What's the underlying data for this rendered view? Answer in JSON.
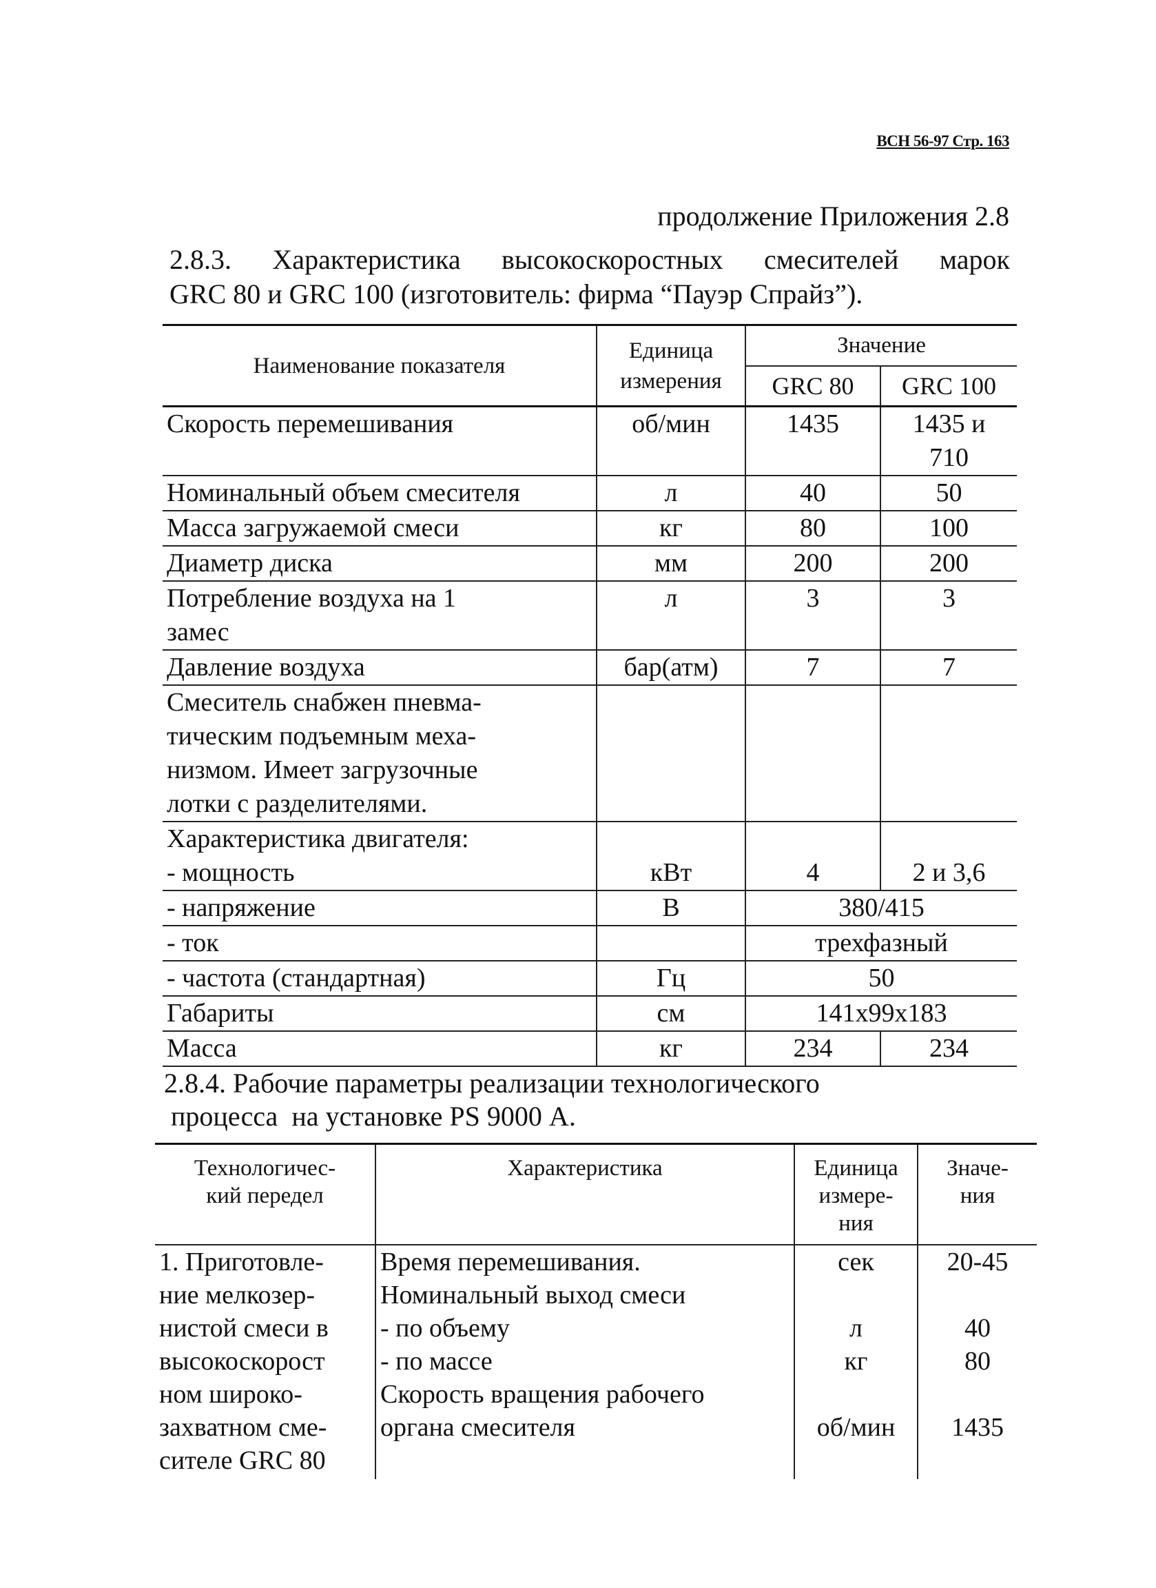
{
  "header": {
    "doc_ref": "ВСН 56-97  Стр. 163"
  },
  "continuation": "продолжение Приложения 2.8",
  "table1": {
    "title_line1": "2.8.3. Характеристика высокоскоростных смесителей марок",
    "title_line2": "GRC 80 и  GRC 100 (изготовитель: фирма “Пауэр Спрайз”).",
    "headers": {
      "name": "Наименование показателя",
      "unit": "Единица измерения",
      "value": "Значение",
      "grc80": "GRC 80",
      "grc100": "GRC 100"
    },
    "rows": [
      {
        "name": "Скорость перемешивания",
        "unit": "об/мин",
        "grc80": "1435",
        "grc100": "1435 и\n710"
      },
      {
        "name": "Номинальный объем смесителя",
        "unit": "л",
        "grc80": "40",
        "grc100": "50"
      },
      {
        "name": "Масса загружаемой смеси",
        "unit": "кг",
        "grc80": "80",
        "grc100": "100"
      },
      {
        "name": "Диаметр диска",
        "unit": "мм",
        "grc80": "200",
        "grc100": "200"
      },
      {
        "name": "Потребление воздуха на 1\nзамес",
        "unit": "л",
        "grc80": "3",
        "grc100": "3"
      },
      {
        "name": "Давление воздуха",
        "unit": "бар(атм)",
        "grc80": "7",
        "grc100": "7"
      },
      {
        "name": "Смеситель снабжен пневма-\nтическим подъемным меха-\nнизмом. Имеет загрузочные\nлотки с разделителями.",
        "unit": "",
        "grc80": "",
        "grc100": ""
      },
      {
        "name": "Характеристика двигателя:\n- мощность",
        "unit": "кВт",
        "grc80": "4",
        "grc100": "2 и 3,6"
      },
      {
        "name": "- напряжение",
        "unit": "В",
        "both": "380/415"
      },
      {
        "name": "- ток",
        "unit": "",
        "both": "трехфазный"
      },
      {
        "name": "- частота (стандартная)",
        "unit": "Гц",
        "both": "50"
      },
      {
        "name": "Габариты",
        "unit": "см",
        "both": "141x99x183"
      },
      {
        "name": "Масса",
        "unit": "кг",
        "grc80": "234",
        "grc100": "234"
      }
    ]
  },
  "table2": {
    "title_line1": "2.8.4. Рабочие параметры реализации технологического",
    "title_line2": " процесса  на установке PS 9000 А.",
    "headers": {
      "stage": "Технологичес-\nкий передел",
      "characteristic": "Характеристика",
      "unit": "Единица\nизмере-\nния",
      "value": "Значе-\nния"
    },
    "row": {
      "stage": "1. Приготовле-\nние мелкозер-\nнистой смеси в\nвысокоскорост\nном широко-\nзахватном сме-\nсителе GRC 80",
      "characteristic": [
        "Время перемешивания.",
        "Номинальный выход смеси",
        "- по объему",
        "- по массе",
        "Скорость вращения рабочего",
        "органа смесителя"
      ],
      "unit": [
        "сек",
        "",
        "л",
        "кг",
        "",
        "об/мин"
      ],
      "value": [
        "20-45",
        "",
        "40",
        "80",
        "",
        "1435"
      ]
    }
  }
}
